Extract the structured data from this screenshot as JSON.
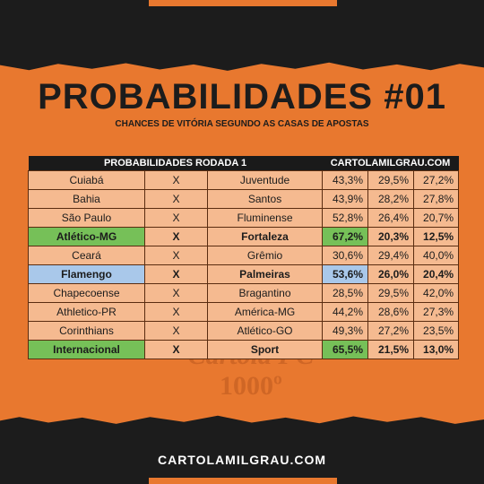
{
  "header": {
    "title": "PROBABILIDADES #01",
    "subtitle": "CHANCES DE VITÓRIA SEGUNDO AS CASAS DE APOSTAS"
  },
  "table": {
    "title_left": "PROBABILIDADES RODADA 1",
    "title_right": "CARTOLAMILGRAU.COM",
    "rows": [
      {
        "home": "Cuiabá",
        "sep": "X",
        "away": "Juventude",
        "p1": "43,3%",
        "px": "29,5%",
        "p2": "27,2%"
      },
      {
        "home": "Bahia",
        "sep": "X",
        "away": "Santos",
        "p1": "43,9%",
        "px": "28,2%",
        "p2": "27,8%"
      },
      {
        "home": "São Paulo",
        "sep": "X",
        "away": "Fluminense",
        "p1": "52,8%",
        "px": "26,4%",
        "p2": "20,7%"
      },
      {
        "home": "Atlético-MG",
        "sep": "X",
        "away": "Fortaleza",
        "p1": "67,2%",
        "px": "20,3%",
        "p2": "12,5%"
      },
      {
        "home": "Ceará",
        "sep": "X",
        "away": "Grêmio",
        "p1": "30,6%",
        "px": "29,4%",
        "p2": "40,0%"
      },
      {
        "home": "Flamengo",
        "sep": "X",
        "away": "Palmeiras",
        "p1": "53,6%",
        "px": "26,0%",
        "p2": "20,4%"
      },
      {
        "home": "Chapecoense",
        "sep": "X",
        "away": "Bragantino",
        "p1": "28,5%",
        "px": "29,5%",
        "p2": "42,0%"
      },
      {
        "home": "Athletico-PR",
        "sep": "X",
        "away": "América-MG",
        "p1": "44,2%",
        "px": "28,6%",
        "p2": "27,3%"
      },
      {
        "home": "Corinthians",
        "sep": "X",
        "away": "Atlético-GO",
        "p1": "49,3%",
        "px": "27,2%",
        "p2": "23,5%"
      },
      {
        "home": "Internacional",
        "sep": "X",
        "away": "Sport",
        "p1": "65,5%",
        "px": "21,5%",
        "p2": "13,0%"
      }
    ]
  },
  "watermark": {
    "line1": "Cartola FC",
    "line2": "1000º"
  },
  "footer": {
    "site": "CARTOLAMILGRAU.COM"
  },
  "colors": {
    "background": "#e8782f",
    "highlight_green": "#76c058",
    "highlight_blue": "#a9c8ea",
    "cell": "#f5ba90"
  }
}
